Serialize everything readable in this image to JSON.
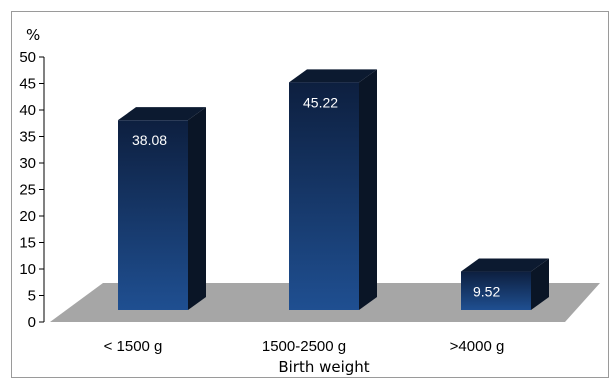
{
  "chart_data": {
    "type": "bar",
    "title": "",
    "xlabel": "Birth weight",
    "ylabel": "%",
    "ylim": [
      0,
      50
    ],
    "ytick_step": 5,
    "categories": [
      "< 1500 g",
      "1500-2500 g",
      ">4000 g"
    ],
    "values": [
      38.08,
      45.22,
      9.52
    ],
    "data_labels": [
      "38.08",
      "45.22",
      "9.52"
    ],
    "yticks": [
      "0",
      "5",
      "10",
      "15",
      "20",
      "25",
      "30",
      "35",
      "40",
      "45",
      "50"
    ],
    "grid": false,
    "legend": "none",
    "style": "3d-column",
    "colors": {
      "bar_front_top": "#0d1f3f",
      "bar_front_bottom": "#1f4f91",
      "bar_side": "#0a1526",
      "bar_top": "#0c1a30",
      "floor": "#a6a6a6",
      "frame": "#9a9a9a"
    }
  }
}
